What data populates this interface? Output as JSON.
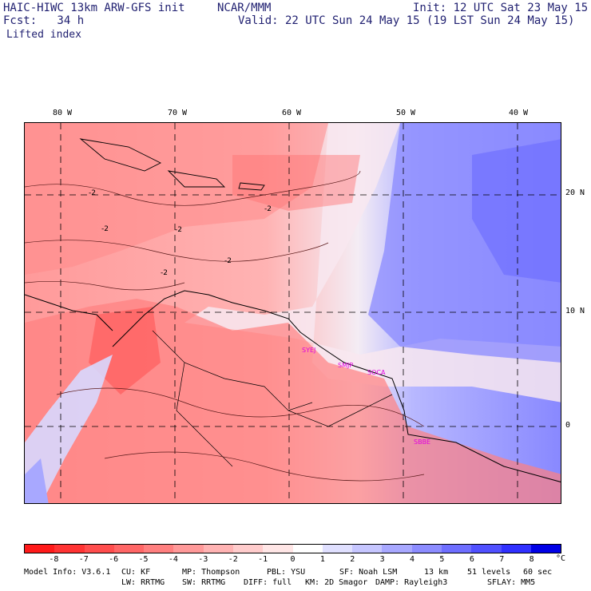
{
  "header": {
    "title_left": "HAIC-HIWC 13km ARW-GFS init",
    "title_mid": "NCAR/MMM",
    "init": "Init: 12 UTC Sat 23 May 15",
    "fcst": "Fcst:   34 h",
    "valid": "Valid: 22 UTC Sun 24 May 15 (19 LST Sun 24 May 15)",
    "field": "Lifted index"
  },
  "map": {
    "lon_labels": [
      "80 W",
      "70 W",
      "60 W",
      "50 W",
      "40 W"
    ],
    "lat_labels": [
      "20 N",
      "10 N",
      "0"
    ],
    "contour_labels": [
      "-2",
      "-2",
      "-2",
      "-2",
      "-2",
      "-2"
    ],
    "cities": [
      "SYEJ",
      "SMJP",
      "SOCA",
      "SBBE"
    ]
  },
  "colorbar": {
    "unit": "°C",
    "ticks": [
      "-8",
      "-7",
      "-6",
      "-5",
      "-4",
      "-3",
      "-2",
      "-1",
      "0",
      "1",
      "2",
      "3",
      "4",
      "5",
      "6",
      "7",
      "8"
    ],
    "colors": [
      "#ff1a1a",
      "#ff3333",
      "#ff4d4d",
      "#ff6666",
      "#ff7f7f",
      "#ff9999",
      "#ffb3b3",
      "#ffcccc",
      "#ffe6e6",
      "#ffffff",
      "#e0e0ff",
      "#c6c6ff",
      "#a8a8ff",
      "#8c8cff",
      "#6e6eff",
      "#5050ff",
      "#3030ff",
      "#0000e6"
    ]
  },
  "footer": {
    "line1_a": "Model Info: V3.6.1",
    "line1_b": "CU: KF",
    "line1_c": "MP: Thompson",
    "line1_d": "PBL: YSU",
    "line1_e": "SF: Noah LSM",
    "line1_f": "13 km",
    "line1_g": "51 levels",
    "line1_h": "60 sec",
    "line2_a": "LW: RRTMG",
    "line2_b": "SW: RRTMG",
    "line2_c": "DIFF: full",
    "line2_d": "KM: 2D Smagor",
    "line2_e": "DAMP: Rayleigh3",
    "line2_f": "SFLAY: MM5"
  }
}
